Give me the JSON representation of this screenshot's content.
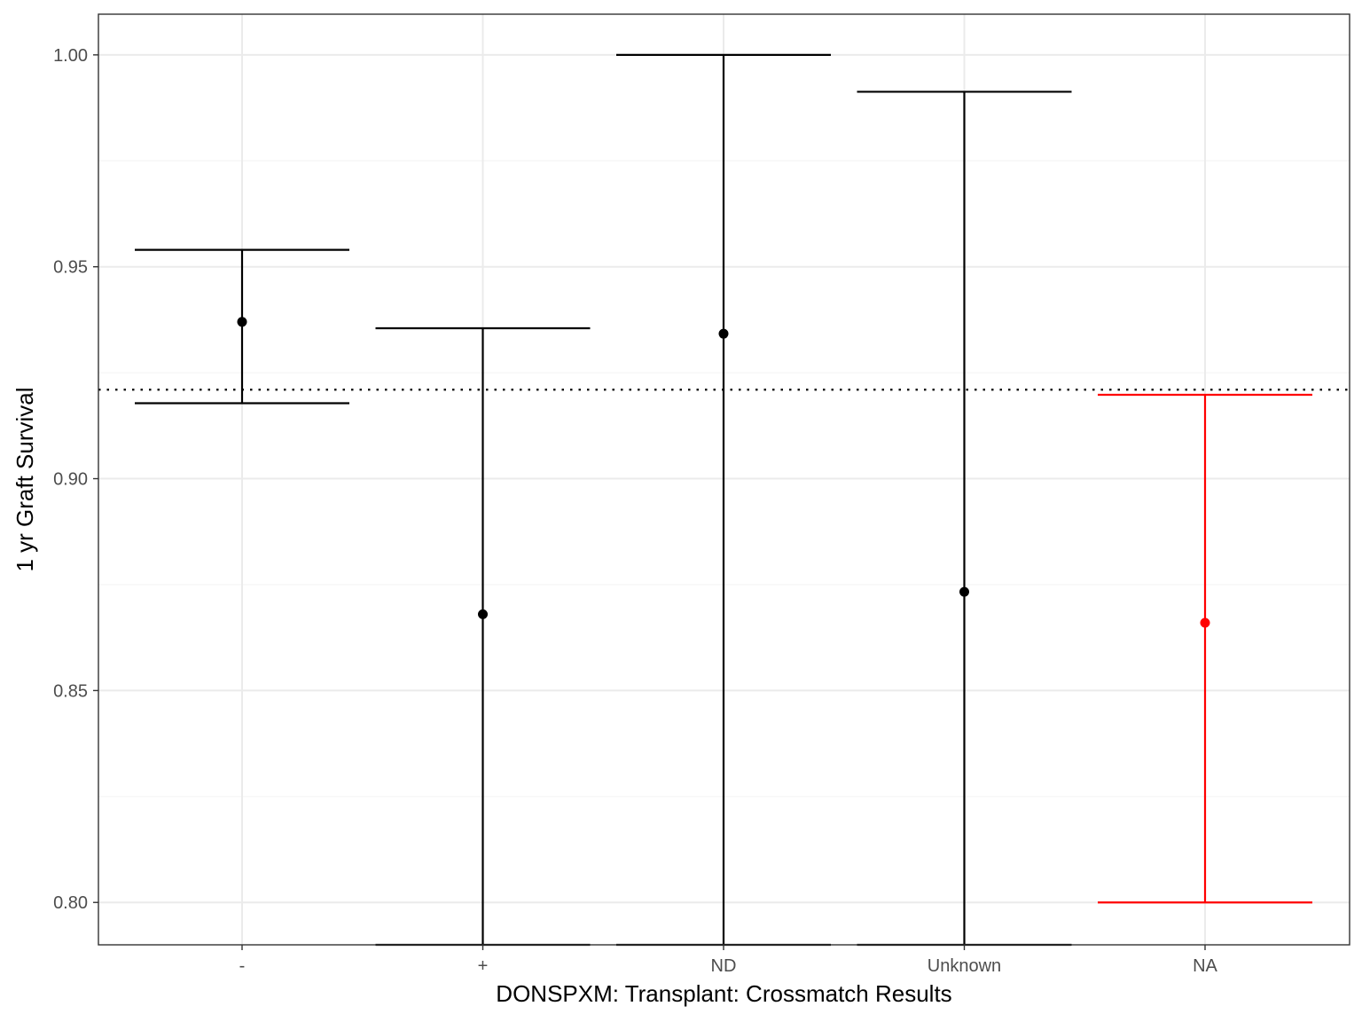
{
  "chart_data": {
    "type": "scatter",
    "xlabel": "DONSPXM: Transplant: Crossmatch Results",
    "ylabel": "1 yr Graft Survival",
    "categories": [
      "-",
      "+",
      "ND",
      "Unknown",
      "NA"
    ],
    "points": [
      {
        "category": "-",
        "estimate": 0.937,
        "lower": 0.9178,
        "upper": 0.954,
        "color": "#000000"
      },
      {
        "category": "+",
        "estimate": 0.868,
        "lower": 0.79,
        "upper": 0.9355,
        "color": "#000000"
      },
      {
        "category": "ND",
        "estimate": 0.9342,
        "lower": 0.79,
        "upper": 1.0,
        "color": "#000000"
      },
      {
        "category": "Unknown",
        "estimate": 0.8733,
        "lower": 0.79,
        "upper": 0.9913,
        "color": "#000000"
      },
      {
        "category": "NA",
        "estimate": 0.866,
        "lower": 0.8,
        "upper": 0.9198,
        "color": "#ff0000"
      }
    ],
    "reference_line": {
      "y": 0.921,
      "style": "dotted"
    },
    "ylim": [
      0.79,
      1.0096
    ],
    "y_ticks": [
      0.8,
      0.85,
      0.9,
      0.95,
      1.0
    ],
    "y_tick_labels": [
      "0.80",
      "0.85",
      "0.90",
      "0.95",
      "1.00"
    ],
    "y_minor_ticks": [
      0.825,
      0.875,
      0.925,
      0.975
    ],
    "grid": true,
    "theme": "bw",
    "colors": {
      "panel_border": "#333333",
      "grid_major": "#ebebeb",
      "grid_minor": "#f5f5f5",
      "default": "#000000",
      "highlight": "#ff0000"
    }
  }
}
